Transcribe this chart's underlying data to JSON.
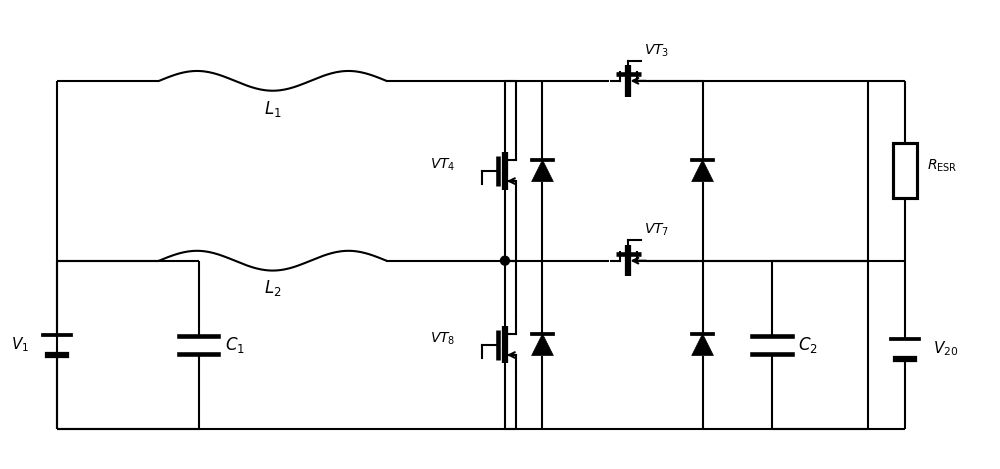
{
  "bg_color": "#ffffff",
  "line_color": "#000000",
  "lw": 1.5,
  "fig_width": 10.0,
  "fig_height": 4.69,
  "dpi": 100
}
